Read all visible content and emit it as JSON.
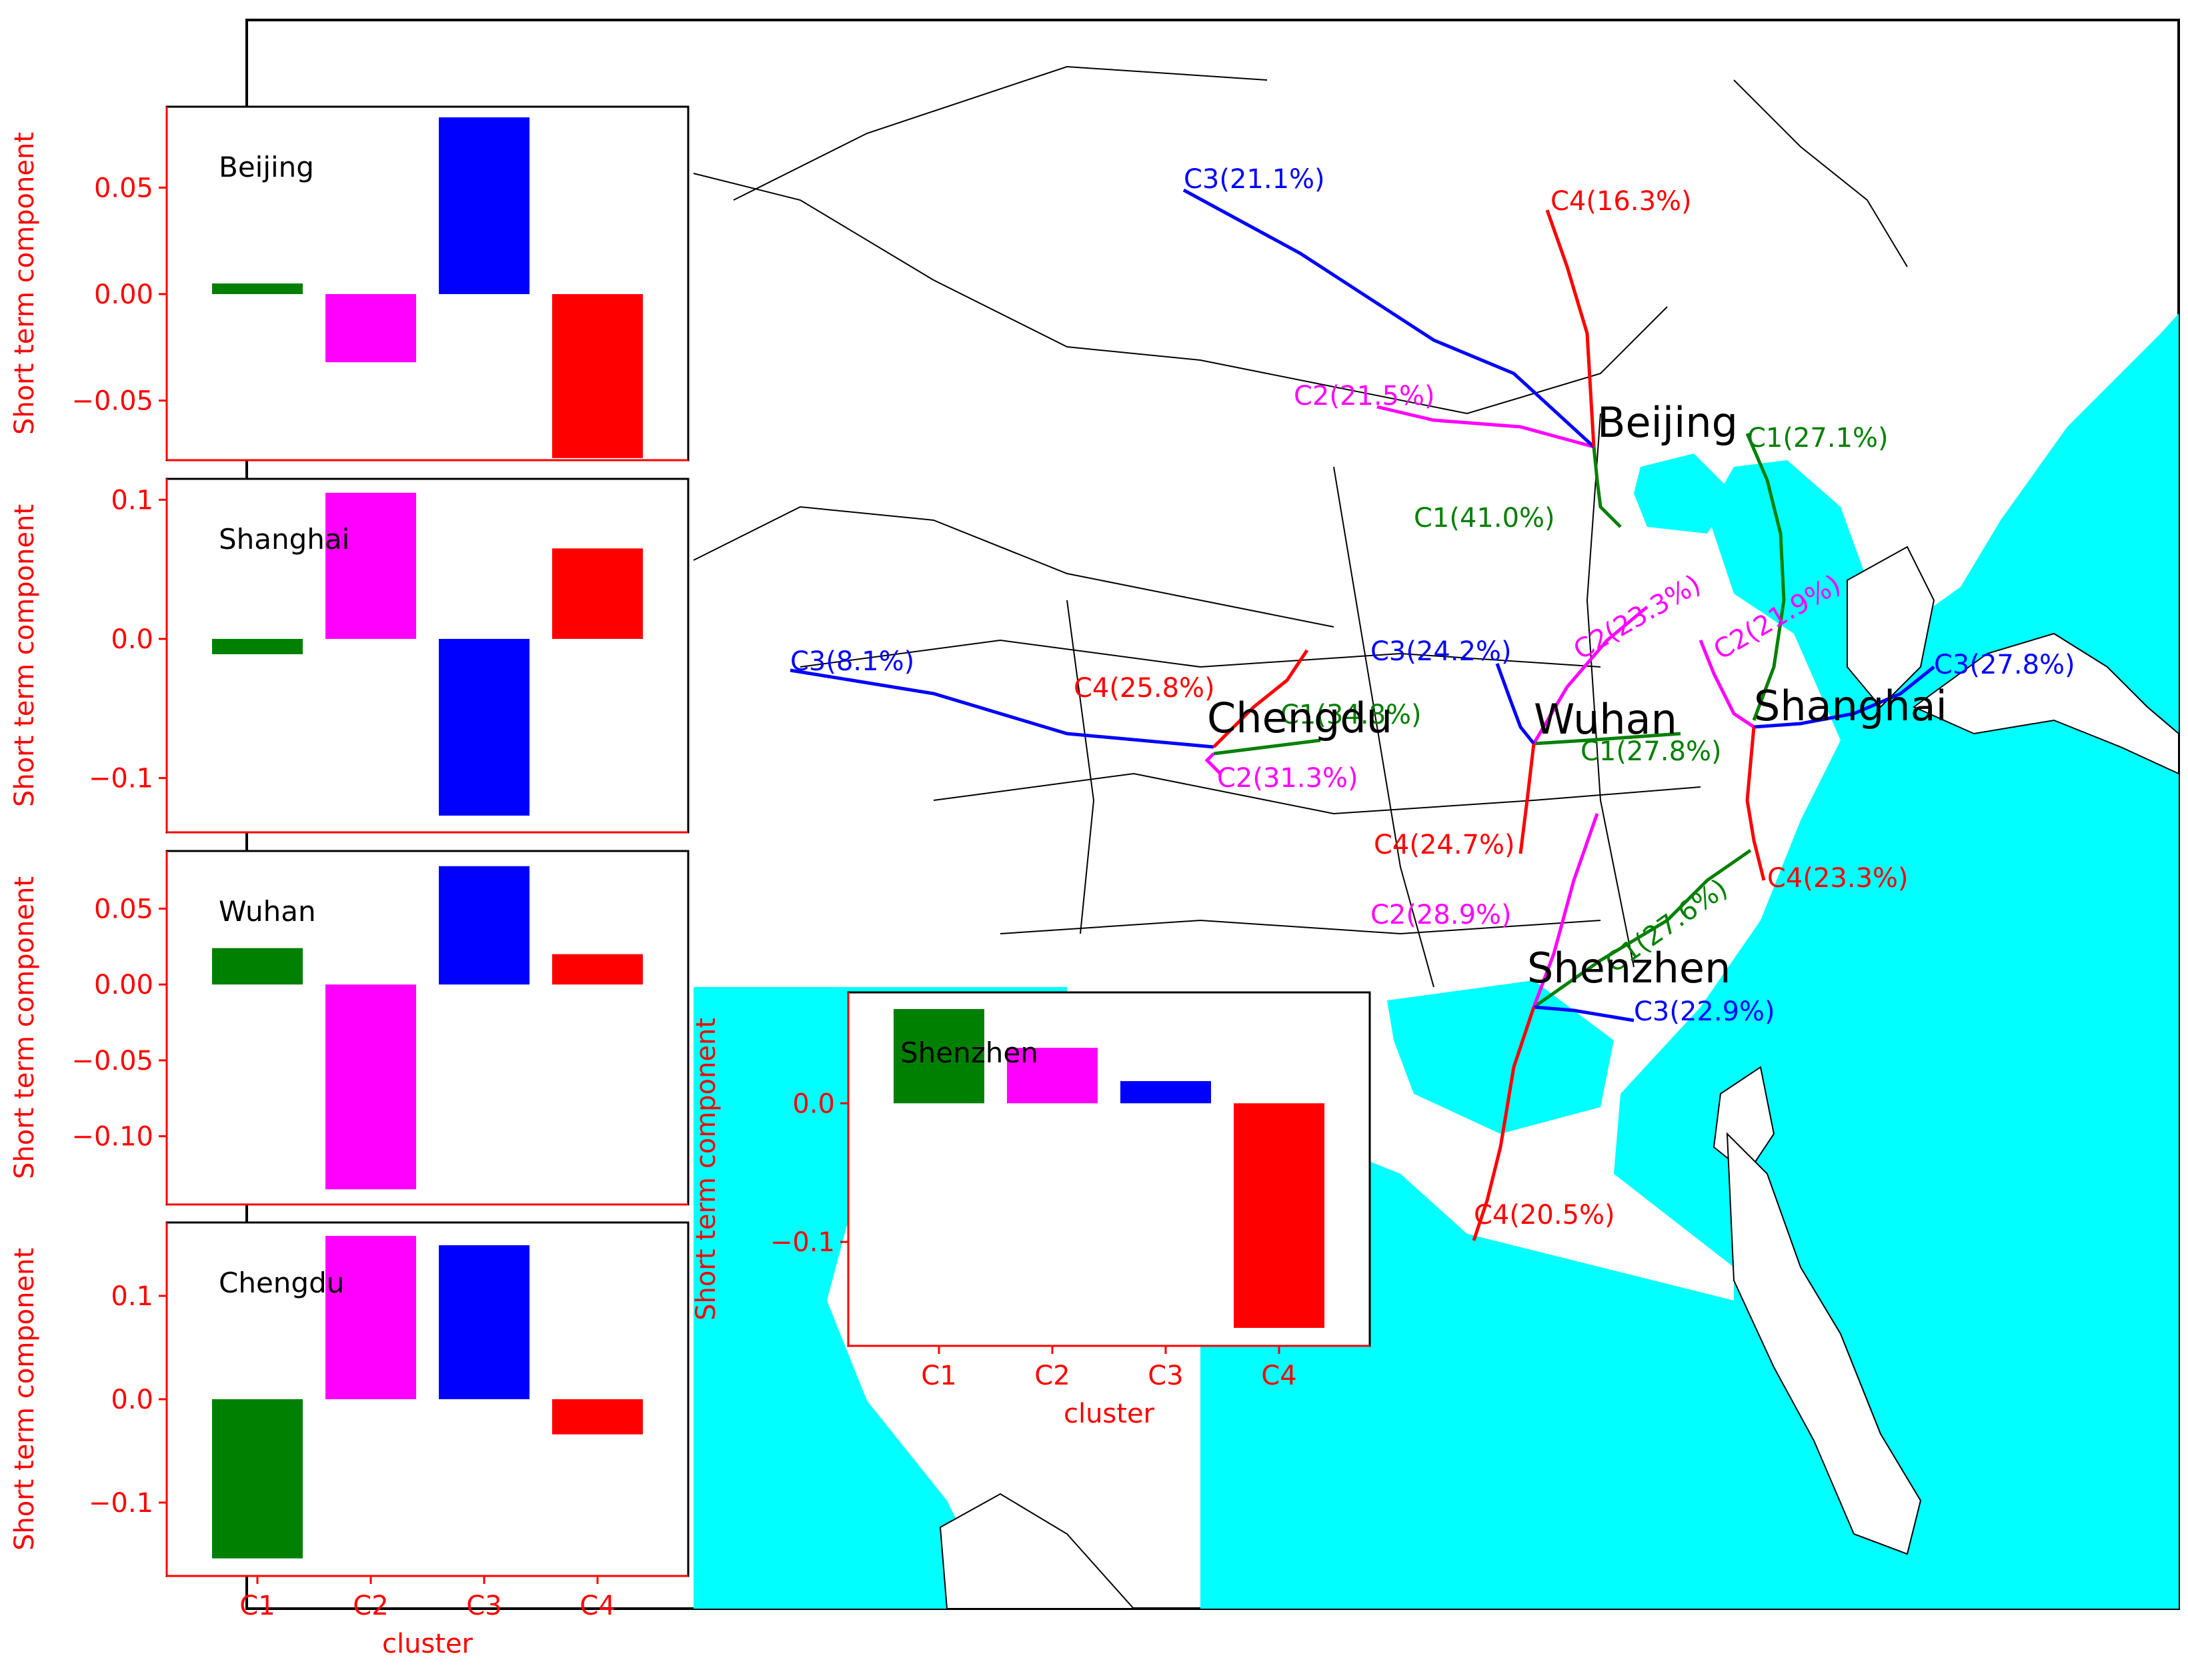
{
  "colors": {
    "C1": "#008000",
    "C2": "#ff00ff",
    "C3": "#0000ff",
    "C4": "#ff0000",
    "sea": "#00ffff",
    "axis": "#ff0000",
    "border": "#000000"
  },
  "map": {
    "cities": [
      "Beijing",
      "Shanghai",
      "Wuhan",
      "Chengdu",
      "Shenzhen"
    ],
    "path_labels": [
      {
        "city": "Beijing",
        "cluster": "C1",
        "text": "C1(41.0%)"
      },
      {
        "city": "Beijing",
        "cluster": "C2",
        "text": "C2(21.5%)"
      },
      {
        "city": "Beijing",
        "cluster": "C3",
        "text": "C3(21.1%)"
      },
      {
        "city": "Beijing",
        "cluster": "C4",
        "text": "C4(16.3%)"
      },
      {
        "city": "Shanghai",
        "cluster": "C1",
        "text": "C1(27.1%)"
      },
      {
        "city": "Shanghai",
        "cluster": "C2",
        "text": "C2(21.9%)"
      },
      {
        "city": "Shanghai",
        "cluster": "C3",
        "text": "C3(27.8%)"
      },
      {
        "city": "Shanghai",
        "cluster": "C4",
        "text": "C4(23.3%)"
      },
      {
        "city": "Wuhan",
        "cluster": "C1",
        "text": "C1(27.8%)"
      },
      {
        "city": "Wuhan",
        "cluster": "C2",
        "text": "C2(23.3%)"
      },
      {
        "city": "Wuhan",
        "cluster": "C3",
        "text": "C3(24.2%)"
      },
      {
        "city": "Wuhan",
        "cluster": "C4",
        "text": "C4(24.7%)"
      },
      {
        "city": "Chengdu",
        "cluster": "C1",
        "text": "C1(34.8%)"
      },
      {
        "city": "Chengdu",
        "cluster": "C2",
        "text": "C2(31.3%)"
      },
      {
        "city": "Chengdu",
        "cluster": "C3",
        "text": "C3(8.1%)"
      },
      {
        "city": "Chengdu",
        "cluster": "C4",
        "text": "C4(25.8%)"
      },
      {
        "city": "Shenzhen",
        "cluster": "C1",
        "text": "C1(27.6%)"
      },
      {
        "city": "Shenzhen",
        "cluster": "C2",
        "text": "C2(28.9%)"
      },
      {
        "city": "Shenzhen",
        "cluster": "C3",
        "text": "C3(22.9%)"
      },
      {
        "city": "Shenzhen",
        "cluster": "C4",
        "text": "C4(20.5%)"
      }
    ]
  },
  "chart_data": [
    {
      "type": "bar",
      "title": "Beijing",
      "categories": [
        "C1",
        "C2",
        "C3",
        "C4"
      ],
      "values": [
        0.005,
        -0.032,
        0.083,
        -0.077
      ],
      "ylabel": "Short term component",
      "xlabel": "",
      "ylim": [
        -0.078,
        0.088
      ],
      "yticks": [
        0.05,
        0.0,
        -0.05
      ],
      "ytick_labels": [
        "0.05",
        "0.00",
        "−0.05"
      ]
    },
    {
      "type": "bar",
      "title": "Shanghai",
      "categories": [
        "C1",
        "C2",
        "C3",
        "C4"
      ],
      "values": [
        -0.011,
        0.105,
        -0.127,
        0.065
      ],
      "ylabel": "Short term component",
      "xlabel": "",
      "ylim": [
        -0.139,
        0.115
      ],
      "yticks": [
        0.1,
        0.0,
        -0.1
      ],
      "ytick_labels": [
        "0.1",
        "0.0",
        "−0.1"
      ]
    },
    {
      "type": "bar",
      "title": "Wuhan",
      "categories": [
        "C1",
        "C2",
        "C3",
        "C4"
      ],
      "values": [
        0.024,
        -0.135,
        0.078,
        0.02
      ],
      "ylabel": "Short term component",
      "xlabel": "",
      "ylim": [
        -0.145,
        0.088
      ],
      "yticks": [
        0.05,
        0.0,
        -0.05,
        -0.1
      ],
      "ytick_labels": [
        "0.05",
        "0.00",
        "−0.05",
        "−0.10"
      ]
    },
    {
      "type": "bar",
      "title": "Chengdu",
      "categories": [
        "C1",
        "C2",
        "C3",
        "C4"
      ],
      "values": [
        -0.154,
        0.158,
        0.149,
        -0.034
      ],
      "ylabel": "Short term component",
      "xlabel": "cluster",
      "ylim": [
        -0.171,
        0.171
      ],
      "yticks": [
        0.1,
        0.0,
        -0.1
      ],
      "ytick_labels": [
        "0.1",
        "0.0",
        "−0.1"
      ],
      "xtick_labels": [
        "C1",
        "C2",
        "C3",
        "C4"
      ]
    },
    {
      "type": "bar",
      "title": "Shenzhen",
      "categories": [
        "C1",
        "C2",
        "C3",
        "C4"
      ],
      "values": [
        0.068,
        0.04,
        0.016,
        -0.162
      ],
      "ylabel": "Short term component",
      "xlabel": "cluster",
      "ylim": [
        -0.175,
        0.08
      ],
      "yticks": [
        0.0,
        -0.1
      ],
      "ytick_labels": [
        "0.0",
        "−0.1"
      ],
      "xtick_labels": [
        "C1",
        "C2",
        "C3",
        "C4"
      ]
    }
  ]
}
